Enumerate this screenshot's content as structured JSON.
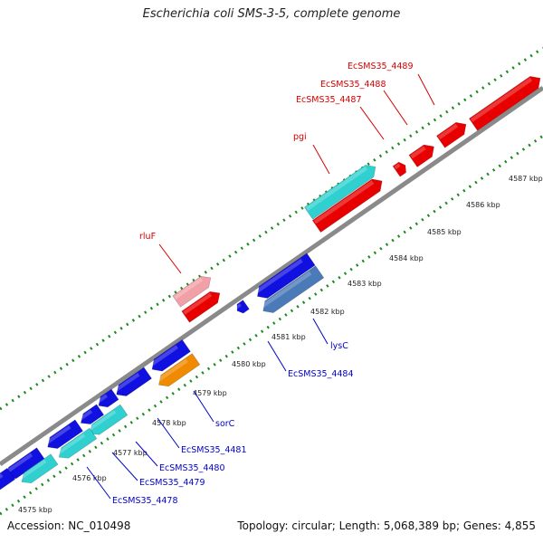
{
  "title": "Escherichia coli SMS-3-5, complete genome",
  "footer": {
    "accession": "Accession: NC_010498",
    "summary": "Topology: circular; Length: 5,068,389 bp; Genes: 4,855"
  },
  "ticks": [
    {
      "label": "4575 kbp"
    },
    {
      "label": "4576 kbp"
    },
    {
      "label": "4577 kbp"
    },
    {
      "label": "4578 kbp"
    },
    {
      "label": "4579 kbp"
    },
    {
      "label": "4580 kbp"
    },
    {
      "label": "4581 kbp"
    },
    {
      "label": "4582 kbp"
    },
    {
      "label": "4583 kbp"
    },
    {
      "label": "4584 kbp"
    },
    {
      "label": "4585 kbp"
    },
    {
      "label": "4586 kbp"
    },
    {
      "label": "4587 kbp"
    }
  ],
  "gene_labels": [
    {
      "text": "EcSMS35_4489",
      "color": "#d40000"
    },
    {
      "text": "EcSMS35_4488",
      "color": "#d40000"
    },
    {
      "text": "EcSMS35_4487",
      "color": "#d40000"
    },
    {
      "text": "pgi",
      "color": "#d40000"
    },
    {
      "text": "rluF",
      "color": "#d40000"
    },
    {
      "text": "lysC",
      "color": "#0000cc"
    },
    {
      "text": "EcSMS35_4484",
      "color": "#0000cc"
    },
    {
      "text": "sorC",
      "color": "#0000cc"
    },
    {
      "text": "EcSMS35_4481",
      "color": "#0000cc"
    },
    {
      "text": "EcSMS35_4480",
      "color": "#0000cc"
    },
    {
      "text": "EcSMS35_4479",
      "color": "#0000cc"
    },
    {
      "text": "EcSMS35_4478",
      "color": "#0000cc"
    }
  ],
  "colors": {
    "forward_cds": "#e80000",
    "forward_pseudo": "#f2a0a8",
    "reverse_cds": "#1010e0",
    "rna": "#30d0d0",
    "reverse_steel": "#4a7ab8",
    "orange": "#f08a00",
    "backbone": "#8a8a8a",
    "gc_marks": "#1a8a1a"
  }
}
